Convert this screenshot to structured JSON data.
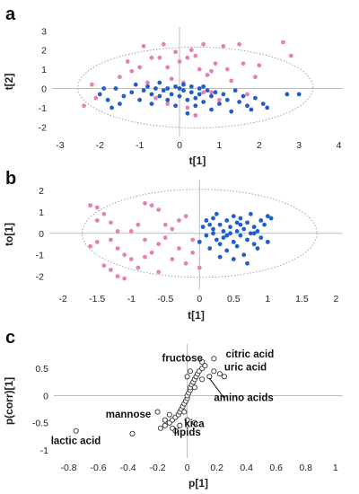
{
  "colors": {
    "group_a": "#e680b8",
    "group_b": "#1f5fcc",
    "loading": "#333333"
  },
  "chart_data": [
    {
      "panel": "a",
      "type": "scatter",
      "xlabel": "t[1]",
      "ylabel": "t[2]",
      "xlim": [
        -3.2,
        4.1
      ],
      "ylim": [
        -2.5,
        3.2
      ],
      "xticks": [
        "-3",
        "-2",
        "-1",
        "0",
        "1",
        "2",
        "3",
        "4"
      ],
      "yticks": [
        "-2",
        "-1",
        "0",
        "1",
        "2",
        "3"
      ],
      "ellipse": {
        "cx": 0.4,
        "cy": 0.05,
        "rx": 2.95,
        "ry": 2.1
      },
      "series": [
        {
          "color": "group_a",
          "points": [
            [
              -2.2,
              0.2
            ],
            [
              -2.4,
              -0.9
            ],
            [
              -2.1,
              -0.5
            ],
            [
              -1.5,
              0.6
            ],
            [
              -1.3,
              1.4
            ],
            [
              -1.2,
              0.9
            ],
            [
              -1.0,
              1.1
            ],
            [
              -0.9,
              2.2
            ],
            [
              -0.8,
              0.3
            ],
            [
              -0.7,
              1.6
            ],
            [
              -0.5,
              1.6
            ],
            [
              -0.4,
              2.3
            ],
            [
              -0.3,
              1.1
            ],
            [
              -0.2,
              0.5
            ],
            [
              -0.1,
              1.9
            ],
            [
              0.0,
              1.4
            ],
            [
              0.1,
              0.3
            ],
            [
              0.2,
              1.6
            ],
            [
              0.3,
              2.0
            ],
            [
              0.4,
              1.7
            ],
            [
              0.5,
              1.0
            ],
            [
              0.6,
              2.3
            ],
            [
              0.7,
              0.7
            ],
            [
              0.8,
              0.9
            ],
            [
              0.9,
              1.3
            ],
            [
              1.1,
              2.2
            ],
            [
              1.2,
              1.0
            ],
            [
              1.3,
              0.4
            ],
            [
              1.5,
              2.3
            ],
            [
              1.6,
              1.3
            ],
            [
              1.7,
              -0.3
            ],
            [
              1.9,
              0.6
            ],
            [
              2.0,
              1.2
            ],
            [
              0.2,
              -1.0
            ],
            [
              0.4,
              -1.4
            ],
            [
              -0.3,
              -0.8
            ],
            [
              0.6,
              -0.2
            ],
            [
              -0.6,
              -0.5
            ],
            [
              2.6,
              2.4
            ],
            [
              2.8,
              1.7
            ],
            [
              1.0,
              -0.6
            ],
            [
              0.8,
              -0.2
            ]
          ]
        },
        {
          "color": "group_b",
          "points": [
            [
              -2.0,
              -0.3
            ],
            [
              -1.9,
              0.0
            ],
            [
              -1.8,
              -0.6
            ],
            [
              -1.7,
              -1.0
            ],
            [
              -1.6,
              0.0
            ],
            [
              -1.4,
              -0.4
            ],
            [
              -1.2,
              -0.2
            ],
            [
              -1.1,
              0.2
            ],
            [
              -1.0,
              -0.6
            ],
            [
              -0.9,
              -0.1
            ],
            [
              -0.8,
              0.1
            ],
            [
              -0.7,
              -0.3
            ],
            [
              -0.7,
              -0.8
            ],
            [
              -0.6,
              0.0
            ],
            [
              -0.5,
              -0.4
            ],
            [
              -0.5,
              0.3
            ],
            [
              -0.4,
              -0.1
            ],
            [
              -0.3,
              -0.6
            ],
            [
              -0.3,
              0.0
            ],
            [
              -0.2,
              -0.3
            ],
            [
              -0.1,
              0.1
            ],
            [
              -0.1,
              -0.9
            ],
            [
              0.0,
              -0.4
            ],
            [
              0.1,
              -0.1
            ],
            [
              0.1,
              0.2
            ],
            [
              0.2,
              -0.6
            ],
            [
              0.2,
              -1.3
            ],
            [
              0.3,
              -0.2
            ],
            [
              0.3,
              0.1
            ],
            [
              0.4,
              -0.5
            ],
            [
              0.4,
              -0.9
            ],
            [
              0.5,
              0.0
            ],
            [
              0.5,
              -0.3
            ],
            [
              0.6,
              -0.7
            ],
            [
              0.7,
              -0.1
            ],
            [
              0.8,
              -0.4
            ],
            [
              0.8,
              -1.1
            ],
            [
              0.9,
              -0.2
            ],
            [
              1.0,
              -0.8
            ],
            [
              1.1,
              -0.3
            ],
            [
              1.2,
              -0.6
            ],
            [
              1.3,
              -1.2
            ],
            [
              1.4,
              -0.1
            ],
            [
              1.5,
              -0.7
            ],
            [
              1.6,
              -0.4
            ],
            [
              1.7,
              -0.9
            ],
            [
              1.8,
              -1.1
            ],
            [
              1.9,
              -0.5
            ],
            [
              2.1,
              -0.8
            ],
            [
              2.2,
              -1.0
            ],
            [
              2.7,
              -0.3
            ],
            [
              3.0,
              -0.3
            ],
            [
              -1.5,
              -0.8
            ],
            [
              0.0,
              0.0
            ],
            [
              0.6,
              0.1
            ]
          ]
        }
      ]
    },
    {
      "panel": "b",
      "type": "scatter",
      "xlabel": "t[1]",
      "ylabel": "to[1]",
      "xlim": [
        -2.2,
        2.1
      ],
      "ylim": [
        -2.6,
        2.5
      ],
      "xticks": [
        "-2",
        "-1.5",
        "-1",
        "-0.5",
        "0",
        "0.5",
        "1",
        "1.5",
        "2"
      ],
      "yticks": [
        "-2",
        "-1",
        "0",
        "1",
        "2"
      ],
      "ellipse": {
        "cx": 0.0,
        "cy": 0.0,
        "rx": 1.72,
        "ry": 2.05
      },
      "series": [
        {
          "color": "group_a",
          "points": [
            [
              -1.6,
              1.3
            ],
            [
              -1.5,
              1.2
            ],
            [
              -1.4,
              0.9
            ],
            [
              -1.3,
              0.5
            ],
            [
              -1.2,
              0.1
            ],
            [
              -1.3,
              -0.3
            ],
            [
              -1.5,
              -0.4
            ],
            [
              -1.6,
              -0.6
            ],
            [
              -1.2,
              -0.7
            ],
            [
              -1.1,
              -1.0
            ],
            [
              -1.0,
              -1.2
            ],
            [
              -1.4,
              -1.5
            ],
            [
              -1.3,
              -1.7
            ],
            [
              -1.2,
              -2.0
            ],
            [
              -1.1,
              -2.1
            ],
            [
              -0.9,
              -1.6
            ],
            [
              -0.8,
              -1.1
            ],
            [
              -0.7,
              -0.9
            ],
            [
              -0.6,
              -0.5
            ],
            [
              -0.5,
              -0.2
            ],
            [
              -0.4,
              0.2
            ],
            [
              -0.3,
              0.6
            ],
            [
              -0.2,
              0.8
            ],
            [
              -0.1,
              -0.3
            ],
            [
              -0.1,
              -0.9
            ],
            [
              -0.2,
              -1.4
            ],
            [
              -0.4,
              -1.2
            ],
            [
              -0.6,
              -1.8
            ],
            [
              -0.8,
              1.4
            ],
            [
              -0.7,
              1.3
            ],
            [
              -0.6,
              1.1
            ],
            [
              -0.9,
              0.4
            ],
            [
              -1.0,
              0.1
            ],
            [
              -0.3,
              -0.7
            ],
            [
              0.0,
              -1.6
            ],
            [
              -1.5,
              0.6
            ],
            [
              -0.8,
              -0.3
            ],
            [
              -0.5,
              0.4
            ]
          ]
        },
        {
          "color": "group_b",
          "points": [
            [
              0.0,
              -0.4
            ],
            [
              0.05,
              0.3
            ],
            [
              0.1,
              -0.1
            ],
            [
              0.1,
              0.6
            ],
            [
              0.15,
              -0.7
            ],
            [
              0.2,
              0.0
            ],
            [
              0.2,
              0.2
            ],
            [
              0.25,
              -0.3
            ],
            [
              0.3,
              0.4
            ],
            [
              0.3,
              -0.5
            ],
            [
              0.35,
              0.1
            ],
            [
              0.35,
              -0.2
            ],
            [
              0.4,
              0.6
            ],
            [
              0.4,
              -0.8
            ],
            [
              0.45,
              0.0
            ],
            [
              0.45,
              0.3
            ],
            [
              0.5,
              -0.4
            ],
            [
              0.5,
              0.8
            ],
            [
              0.55,
              0.1
            ],
            [
              0.55,
              -0.6
            ],
            [
              0.6,
              0.4
            ],
            [
              0.6,
              -0.1
            ],
            [
              0.65,
              0.2
            ],
            [
              0.65,
              -1.0
            ],
            [
              0.7,
              0.5
            ],
            [
              0.7,
              -0.3
            ],
            [
              0.75,
              0.0
            ],
            [
              0.75,
              0.9
            ],
            [
              0.8,
              -0.5
            ],
            [
              0.8,
              0.3
            ],
            [
              0.85,
              0.1
            ],
            [
              0.85,
              -0.7
            ],
            [
              0.9,
              0.6
            ],
            [
              0.9,
              -0.2
            ],
            [
              0.95,
              0.4
            ],
            [
              1.0,
              0.8
            ],
            [
              1.0,
              -0.4
            ],
            [
              1.05,
              0.7
            ],
            [
              0.2,
              0.7
            ],
            [
              0.3,
              -1.1
            ],
            [
              0.5,
              -1.2
            ],
            [
              0.7,
              -1.4
            ],
            [
              0.25,
              0.9
            ],
            [
              0.6,
              0.7
            ],
            [
              0.15,
              0.4
            ],
            [
              0.4,
              -0.1
            ],
            [
              0.55,
              0.5
            ],
            [
              0.8,
              0.0
            ]
          ]
        }
      ]
    },
    {
      "panel": "c",
      "type": "scatter",
      "xlabel": "p[1]",
      "ylabel": "p(corr)[1]",
      "xlim": [
        -0.9,
        1.05
      ],
      "ylim": [
        -1.15,
        0.95
      ],
      "xticks": [
        "-0.8",
        "-0.6",
        "-0.4",
        "-0.2",
        "0",
        "0.2",
        "0.4",
        "0.6",
        "0.8",
        "1"
      ],
      "yticks": [
        "-1",
        "-0.5",
        "0",
        "0.5"
      ],
      "points": [
        [
          -0.75,
          -0.65
        ],
        [
          -0.37,
          -0.7
        ],
        [
          -0.18,
          -0.6
        ],
        [
          -0.15,
          -0.55
        ],
        [
          -0.12,
          -0.5
        ],
        [
          -0.1,
          -0.45
        ],
        [
          -0.08,
          -0.4
        ],
        [
          -0.06,
          -0.35
        ],
        [
          -0.05,
          -0.3
        ],
        [
          -0.04,
          -0.25
        ],
        [
          -0.03,
          -0.2
        ],
        [
          -0.02,
          -0.15
        ],
        [
          -0.01,
          -0.1
        ],
        [
          0.0,
          -0.05
        ],
        [
          0.0,
          0.0
        ],
        [
          0.01,
          0.05
        ],
        [
          0.02,
          0.1
        ],
        [
          0.02,
          0.15
        ],
        [
          0.03,
          0.2
        ],
        [
          0.04,
          0.25
        ],
        [
          0.05,
          0.3
        ],
        [
          0.06,
          0.35
        ],
        [
          0.07,
          0.4
        ],
        [
          0.08,
          0.45
        ],
        [
          0.1,
          0.5
        ],
        [
          0.12,
          0.55
        ],
        [
          0.18,
          0.45
        ],
        [
          0.22,
          0.4
        ],
        [
          0.25,
          0.35
        ],
        [
          0.15,
          0.35
        ],
        [
          0.1,
          0.3
        ],
        [
          -0.12,
          -0.35
        ],
        [
          -0.15,
          -0.45
        ],
        [
          -0.1,
          -0.6
        ],
        [
          -0.05,
          -0.55
        ],
        [
          0.0,
          -0.45
        ],
        [
          0.05,
          -0.5
        ],
        [
          -0.08,
          -0.65
        ],
        [
          0.1,
          0.62
        ],
        [
          0.18,
          0.68
        ],
        [
          -0.2,
          -0.3
        ],
        [
          0.0,
          0.35
        ],
        [
          0.05,
          0.15
        ],
        [
          -0.02,
          -0.3
        ],
        [
          0.02,
          0.45
        ]
      ],
      "labels": [
        {
          "text": "citric acid",
          "x": 0.26,
          "y": 0.7
        },
        {
          "text": "fructose",
          "x": -0.17,
          "y": 0.63
        },
        {
          "text": "uric acid",
          "x": 0.25,
          "y": 0.46
        },
        {
          "text": "amino acids",
          "x": 0.18,
          "y": -0.1
        },
        {
          "text": "mannose",
          "x": -0.55,
          "y": -0.41
        },
        {
          "text": "kica",
          "x": -0.02,
          "y": -0.58
        },
        {
          "text": "lipids",
          "x": -0.09,
          "y": -0.74
        },
        {
          "text": "lactic acid",
          "x": -0.92,
          "y": -0.89
        }
      ]
    }
  ]
}
